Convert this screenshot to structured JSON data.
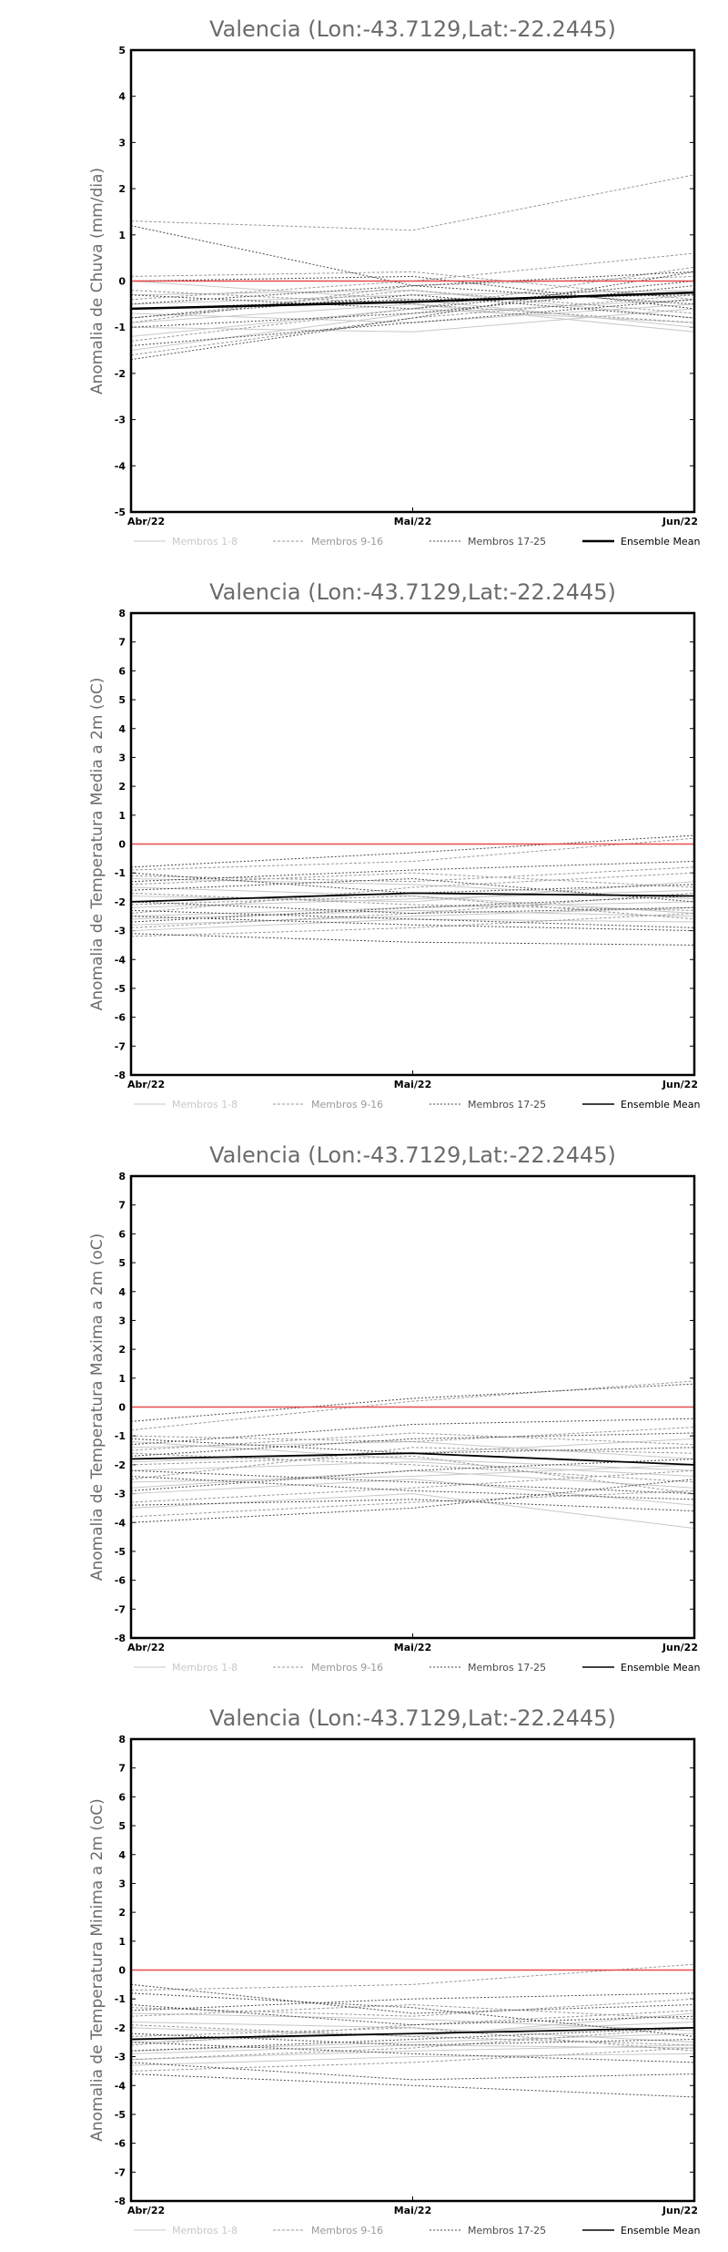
{
  "colors": {
    "members_1_8": "#c8c8c8",
    "members_9_16": "#9a9a9a",
    "members_17_25": "#4a4a4a",
    "ensemble_mean": "#000000",
    "zero_line": "#e84a4a",
    "title_text": "#6b6b6b"
  },
  "legend": {
    "members_1_8": "Membros 1-8",
    "members_9_16": "Membros 9-16",
    "members_17_25": "Membros 17-25",
    "ensemble_mean": "Ensemble Mean"
  },
  "chart_data": [
    {
      "type": "line",
      "title": "Valencia (Lon:-43.7129,Lat:-22.2445)",
      "xlabel": "",
      "ylabel": "Anomalia de Chuva (mm/dia)",
      "categories": [
        "Abr/22",
        "Mai/22",
        "Jun/22"
      ],
      "ylim": [
        -5,
        5
      ],
      "yticks": [
        -5,
        -4,
        -3,
        -2,
        -1,
        0,
        1,
        2,
        3,
        4,
        5
      ],
      "grid": false,
      "zero_line": 0,
      "ensemble_mean": [
        -0.6,
        -0.45,
        -0.25
      ],
      "members": [
        {
          "group": "1-8",
          "values": [
            -1.2,
            -0.6,
            -0.9
          ]
        },
        {
          "group": "1-8",
          "values": [
            -1.5,
            -0.7,
            -0.4
          ]
        },
        {
          "group": "1-8",
          "values": [
            -0.9,
            -0.5,
            -1.1
          ]
        },
        {
          "group": "1-8",
          "values": [
            -0.3,
            -0.2,
            -0.8
          ]
        },
        {
          "group": "1-8",
          "values": [
            -0.7,
            -0.9,
            -0.5
          ]
        },
        {
          "group": "1-8",
          "values": [
            0.0,
            -0.4,
            -1.0
          ]
        },
        {
          "group": "1-8",
          "values": [
            -1.0,
            -1.1,
            -0.6
          ]
        },
        {
          "group": "1-8",
          "values": [
            -0.5,
            -0.3,
            -0.2
          ]
        },
        {
          "group": "9-16",
          "values": [
            1.3,
            1.1,
            2.3
          ]
        },
        {
          "group": "9-16",
          "values": [
            -0.4,
            0.0,
            0.6
          ]
        },
        {
          "group": "9-16",
          "values": [
            -1.6,
            -0.8,
            -0.3
          ]
        },
        {
          "group": "9-16",
          "values": [
            -0.8,
            -0.2,
            -0.7
          ]
        },
        {
          "group": "9-16",
          "values": [
            0.1,
            0.2,
            -0.4
          ]
        },
        {
          "group": "9-16",
          "values": [
            -1.3,
            -0.6,
            0.3
          ]
        },
        {
          "group": "9-16",
          "values": [
            -0.2,
            -0.5,
            -0.9
          ]
        },
        {
          "group": "9-16",
          "values": [
            -0.9,
            -0.1,
            0.1
          ]
        },
        {
          "group": "17-25",
          "values": [
            1.2,
            -0.1,
            -0.5
          ]
        },
        {
          "group": "17-25",
          "values": [
            -1.7,
            -0.8,
            0.2
          ]
        },
        {
          "group": "17-25",
          "values": [
            -0.6,
            -0.4,
            -0.3
          ]
        },
        {
          "group": "17-25",
          "values": [
            -1.0,
            -0.7,
            -0.1
          ]
        },
        {
          "group": "17-25",
          "values": [
            0.0,
            0.1,
            -0.6
          ]
        },
        {
          "group": "17-25",
          "values": [
            -0.5,
            -0.1,
            0.2
          ]
        },
        {
          "group": "17-25",
          "values": [
            -1.4,
            -0.9,
            -0.4
          ]
        },
        {
          "group": "17-25",
          "values": [
            -0.3,
            -0.6,
            0.0
          ]
        },
        {
          "group": "17-25",
          "values": [
            -0.8,
            -0.3,
            -0.8
          ]
        }
      ]
    },
    {
      "type": "line",
      "title": "Valencia (Lon:-43.7129,Lat:-22.2445)",
      "xlabel": "",
      "ylabel": "Anomalia de Temperatura Media a 2m (oC)",
      "categories": [
        "Abr/22",
        "Mai/22",
        "Jun/22"
      ],
      "ylim": [
        -8,
        8
      ],
      "yticks": [
        -8,
        -7,
        -6,
        -5,
        -4,
        -3,
        -2,
        -1,
        0,
        1,
        2,
        3,
        4,
        5,
        6,
        7,
        8
      ],
      "grid": false,
      "zero_line": 0,
      "ensemble_mean": [
        -2.0,
        -1.7,
        -1.8
      ],
      "members": [
        {
          "group": "1-8",
          "values": [
            -2.5,
            -2.2,
            -2.0
          ]
        },
        {
          "group": "1-8",
          "values": [
            -2.8,
            -2.5,
            -2.2
          ]
        },
        {
          "group": "1-8",
          "values": [
            -1.5,
            -1.8,
            -2.4
          ]
        },
        {
          "group": "1-8",
          "values": [
            -2.2,
            -1.9,
            -1.6
          ]
        },
        {
          "group": "1-8",
          "values": [
            -3.0,
            -2.6,
            -2.7
          ]
        },
        {
          "group": "1-8",
          "values": [
            -1.8,
            -2.0,
            -1.3
          ]
        },
        {
          "group": "1-8",
          "values": [
            -2.6,
            -2.3,
            -2.5
          ]
        },
        {
          "group": "1-8",
          "values": [
            -1.2,
            -1.4,
            -1.9
          ]
        },
        {
          "group": "9-16",
          "values": [
            -0.9,
            -0.6,
            0.2
          ]
        },
        {
          "group": "9-16",
          "values": [
            -2.4,
            -1.5,
            -1.0
          ]
        },
        {
          "group": "9-16",
          "values": [
            -1.7,
            -2.1,
            -2.3
          ]
        },
        {
          "group": "9-16",
          "values": [
            -2.9,
            -2.4,
            -1.7
          ]
        },
        {
          "group": "9-16",
          "values": [
            -1.1,
            -1.3,
            -0.8
          ]
        },
        {
          "group": "9-16",
          "values": [
            -2.1,
            -1.8,
            -2.6
          ]
        },
        {
          "group": "9-16",
          "values": [
            -3.2,
            -2.9,
            -2.4
          ]
        },
        {
          "group": "9-16",
          "values": [
            -1.4,
            -1.0,
            -1.5
          ]
        },
        {
          "group": "17-25",
          "values": [
            -0.8,
            -0.3,
            0.3
          ]
        },
        {
          "group": "17-25",
          "values": [
            -3.1,
            -3.4,
            -3.5
          ]
        },
        {
          "group": "17-25",
          "values": [
            -2.5,
            -2.8,
            -3.0
          ]
        },
        {
          "group": "17-25",
          "values": [
            -1.6,
            -1.2,
            -2.0
          ]
        },
        {
          "group": "17-25",
          "values": [
            -2.7,
            -2.2,
            -1.8
          ]
        },
        {
          "group": "17-25",
          "values": [
            -1.0,
            -1.7,
            -1.4
          ]
        },
        {
          "group": "17-25",
          "values": [
            -2.3,
            -2.6,
            -2.9
          ]
        },
        {
          "group": "17-25",
          "values": [
            -1.3,
            -0.9,
            -0.6
          ]
        },
        {
          "group": "17-25",
          "values": [
            -2.0,
            -2.4,
            -2.2
          ]
        }
      ]
    },
    {
      "type": "line",
      "title": "Valencia (Lon:-43.7129,Lat:-22.2445)",
      "xlabel": "",
      "ylabel": "Anomalia de Temperatura Maxima a 2m (oC)",
      "categories": [
        "Abr/22",
        "Mai/22",
        "Jun/22"
      ],
      "ylim": [
        -8,
        8
      ],
      "yticks": [
        -8,
        -7,
        -6,
        -5,
        -4,
        -3,
        -2,
        -1,
        0,
        1,
        2,
        3,
        4,
        5,
        6,
        7,
        8
      ],
      "grid": false,
      "zero_line": 0,
      "ensemble_mean": [
        -1.8,
        -1.6,
        -2.0
      ],
      "members": [
        {
          "group": "1-8",
          "values": [
            -2.2,
            -1.9,
            -2.4
          ]
        },
        {
          "group": "1-8",
          "values": [
            -3.5,
            -3.0,
            -4.2
          ]
        },
        {
          "group": "1-8",
          "values": [
            -1.4,
            -1.2,
            -1.8
          ]
        },
        {
          "group": "1-8",
          "values": [
            -2.6,
            -2.4,
            -2.0
          ]
        },
        {
          "group": "1-8",
          "values": [
            -3.0,
            -2.5,
            -3.4
          ]
        },
        {
          "group": "1-8",
          "values": [
            -1.9,
            -1.6,
            -1.1
          ]
        },
        {
          "group": "1-8",
          "values": [
            -2.8,
            -2.2,
            -2.8
          ]
        },
        {
          "group": "1-8",
          "values": [
            -1.2,
            -1.8,
            -2.2
          ]
        },
        {
          "group": "9-16",
          "values": [
            -0.8,
            0.2,
            0.9
          ]
        },
        {
          "group": "9-16",
          "values": [
            -2.5,
            -1.4,
            -1.6
          ]
        },
        {
          "group": "9-16",
          "values": [
            -1.6,
            -2.0,
            -2.6
          ]
        },
        {
          "group": "9-16",
          "values": [
            -3.3,
            -2.8,
            -2.2
          ]
        },
        {
          "group": "9-16",
          "values": [
            -1.0,
            -1.2,
            -0.7
          ]
        },
        {
          "group": "9-16",
          "values": [
            -2.0,
            -1.7,
            -3.0
          ]
        },
        {
          "group": "9-16",
          "values": [
            -3.8,
            -3.3,
            -2.9
          ]
        },
        {
          "group": "9-16",
          "values": [
            -1.5,
            -0.9,
            -1.3
          ]
        },
        {
          "group": "17-25",
          "values": [
            -0.5,
            0.3,
            0.8
          ]
        },
        {
          "group": "17-25",
          "values": [
            -3.4,
            -3.2,
            -3.6
          ]
        },
        {
          "group": "17-25",
          "values": [
            -2.4,
            -2.9,
            -3.2
          ]
        },
        {
          "group": "17-25",
          "values": [
            -1.7,
            -1.1,
            -0.9
          ]
        },
        {
          "group": "17-25",
          "values": [
            -2.9,
            -2.2,
            -1.8
          ]
        },
        {
          "group": "17-25",
          "values": [
            -1.1,
            -1.6,
            -1.4
          ]
        },
        {
          "group": "17-25",
          "values": [
            -2.2,
            -2.6,
            -3.0
          ]
        },
        {
          "group": "17-25",
          "values": [
            -1.3,
            -0.6,
            -0.4
          ]
        },
        {
          "group": "17-25",
          "values": [
            -4.0,
            -3.5,
            -2.5
          ]
        }
      ]
    },
    {
      "type": "line",
      "title": "Valencia (Lon:-43.7129,Lat:-22.2445)",
      "xlabel": "",
      "ylabel": "Anomalia de Temperatura Minima a 2m (oC)",
      "categories": [
        "Abr/22",
        "Mai/22",
        "Jun/22"
      ],
      "ylim": [
        -8,
        8
      ],
      "yticks": [
        -8,
        -7,
        -6,
        -5,
        -4,
        -3,
        -2,
        -1,
        0,
        1,
        2,
        3,
        4,
        5,
        6,
        7,
        8
      ],
      "grid": false,
      "zero_line": 0,
      "ensemble_mean": [
        -2.4,
        -2.2,
        -2.0
      ],
      "members": [
        {
          "group": "1-8",
          "values": [
            -2.8,
            -2.5,
            -2.2
          ]
        },
        {
          "group": "1-8",
          "values": [
            -3.1,
            -2.8,
            -2.6
          ]
        },
        {
          "group": "1-8",
          "values": [
            -1.8,
            -2.0,
            -2.5
          ]
        },
        {
          "group": "1-8",
          "values": [
            -2.5,
            -2.2,
            -1.8
          ]
        },
        {
          "group": "1-8",
          "values": [
            -3.3,
            -3.0,
            -2.9
          ]
        },
        {
          "group": "1-8",
          "values": [
            -2.0,
            -2.3,
            -1.5
          ]
        },
        {
          "group": "1-8",
          "values": [
            -2.9,
            -2.6,
            -2.7
          ]
        },
        {
          "group": "1-8",
          "values": [
            -1.5,
            -1.7,
            -2.1
          ]
        },
        {
          "group": "9-16",
          "values": [
            -0.7,
            -0.5,
            0.2
          ]
        },
        {
          "group": "9-16",
          "values": [
            -2.6,
            -1.9,
            -1.4
          ]
        },
        {
          "group": "9-16",
          "values": [
            -1.9,
            -2.3,
            -2.6
          ]
        },
        {
          "group": "9-16",
          "values": [
            -3.1,
            -2.7,
            -2.0
          ]
        },
        {
          "group": "9-16",
          "values": [
            -1.3,
            -1.6,
            -1.0
          ]
        },
        {
          "group": "9-16",
          "values": [
            -2.3,
            -2.0,
            -2.8
          ]
        },
        {
          "group": "9-16",
          "values": [
            -3.5,
            -3.2,
            -2.7
          ]
        },
        {
          "group": "9-16",
          "values": [
            -1.6,
            -1.2,
            -1.7
          ]
        },
        {
          "group": "17-25",
          "values": [
            -0.5,
            -1.5,
            -1.2
          ]
        },
        {
          "group": "17-25",
          "values": [
            -3.2,
            -3.8,
            -3.6
          ]
        },
        {
          "group": "17-25",
          "values": [
            -3.6,
            -4.0,
            -4.4
          ]
        },
        {
          "group": "17-25",
          "values": [
            -0.8,
            -1.3,
            -2.3
          ]
        },
        {
          "group": "17-25",
          "values": [
            -2.8,
            -2.4,
            -2.0
          ]
        },
        {
          "group": "17-25",
          "values": [
            -1.2,
            -1.9,
            -1.6
          ]
        },
        {
          "group": "17-25",
          "values": [
            -2.5,
            -2.9,
            -3.2
          ]
        },
        {
          "group": "17-25",
          "values": [
            -1.4,
            -1.0,
            -0.8
          ]
        },
        {
          "group": "17-25",
          "values": [
            -2.2,
            -2.6,
            -2.4
          ]
        }
      ]
    }
  ]
}
